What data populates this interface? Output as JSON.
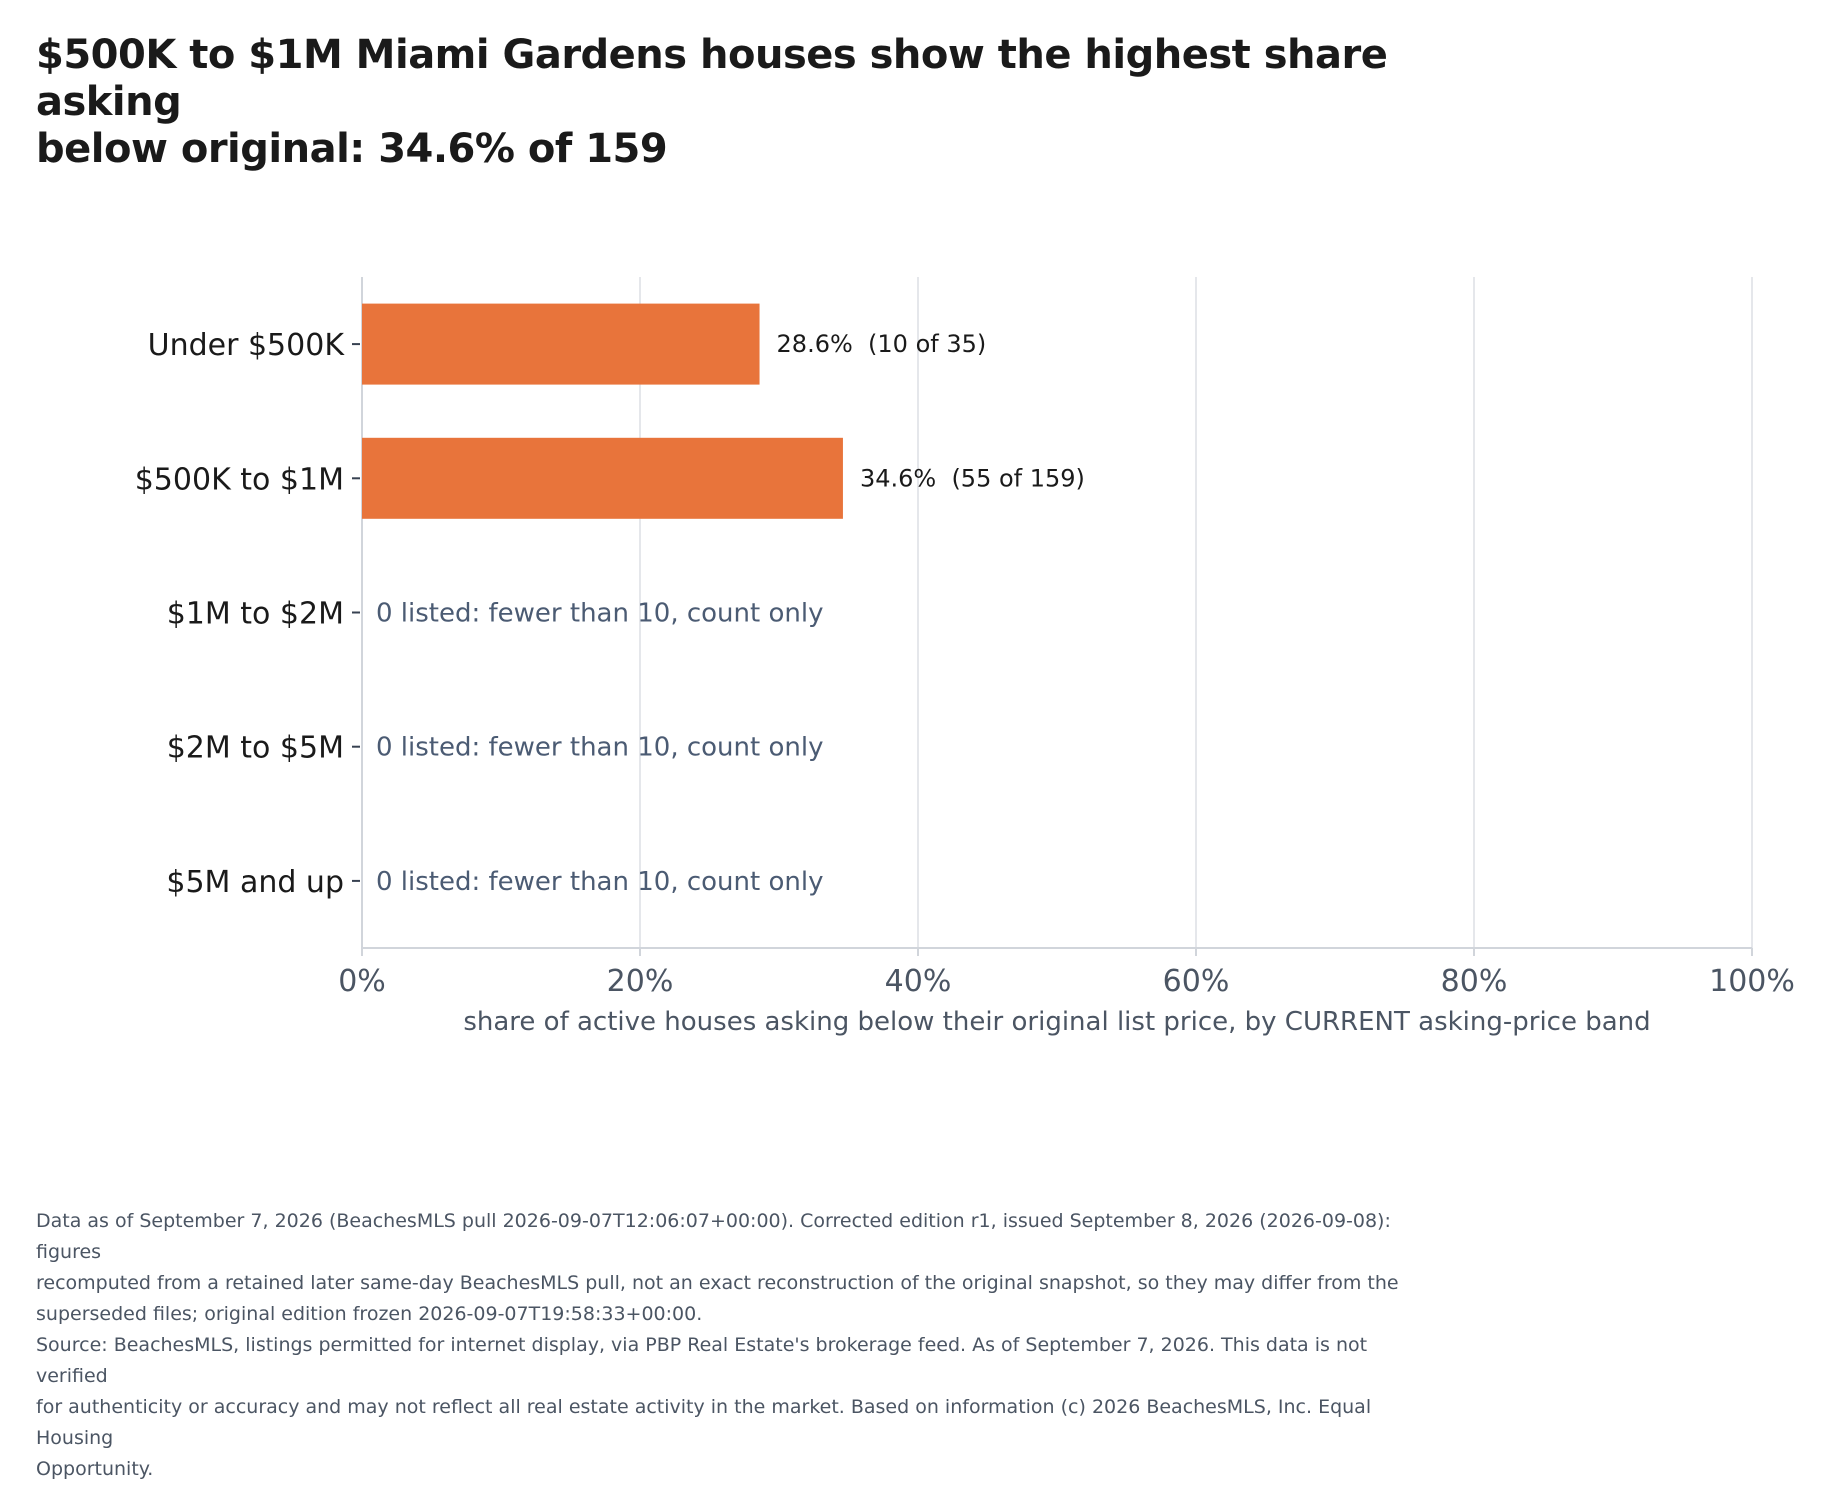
{
  "title_lines": [
    "$500K to $1M Miami Gardens houses show the highest share asking",
    "below original: 34.6% of 159"
  ],
  "colors": {
    "bar": "#e8743b",
    "grid": "#e5e7eb",
    "axis": "#d1d5db",
    "tick_text": "#4b5563",
    "label_text": "#1a1a1a",
    "note_text": "#4b5b73"
  },
  "chart_data": {
    "type": "bar",
    "orientation": "horizontal",
    "categories": [
      "Under $500K",
      "$500K to $1M",
      "$1M to $2M",
      "$2M to $5M",
      "$5M and up"
    ],
    "values": [
      28.6,
      34.6,
      null,
      null,
      null
    ],
    "bar_labels": [
      "28.6%  (10 of 35)",
      "34.6%  (55 of 159)",
      null,
      null,
      null
    ],
    "empty_notes": [
      null,
      null,
      "0 listed: fewer than 10, count only",
      "0 listed: fewer than 10, count only",
      "0 listed: fewer than 10, count only"
    ],
    "xlim": [
      0,
      100
    ],
    "xticks": [
      0,
      20,
      40,
      60,
      80,
      100
    ],
    "xtick_labels": [
      "0%",
      "20%",
      "40%",
      "60%",
      "80%",
      "100%"
    ],
    "xlabel": "share of active houses asking below their original list price, by CURRENT asking-price band",
    "ylabel": "",
    "grid": "vertical"
  },
  "footnote": [
    "Data as of September 7, 2026 (BeachesMLS pull 2026-09-07T12:06:07+00:00). Corrected edition r1, issued September 8, 2026 (2026-09-08): figures",
    "recomputed from a retained later same-day BeachesMLS pull, not an exact reconstruction of the original snapshot, so they may differ from the",
    "superseded files; original edition frozen 2026-09-07T19:58:33+00:00.",
    "Source: BeachesMLS, listings permitted for internet display, via PBP Real Estate's brokerage feed. As of September 7, 2026. This data is not verified",
    "for authenticity or accuracy and may not reflect all real estate activity in the market. Based on information (c) 2026 BeachesMLS, Inc. Equal Housing",
    "Opportunity."
  ]
}
